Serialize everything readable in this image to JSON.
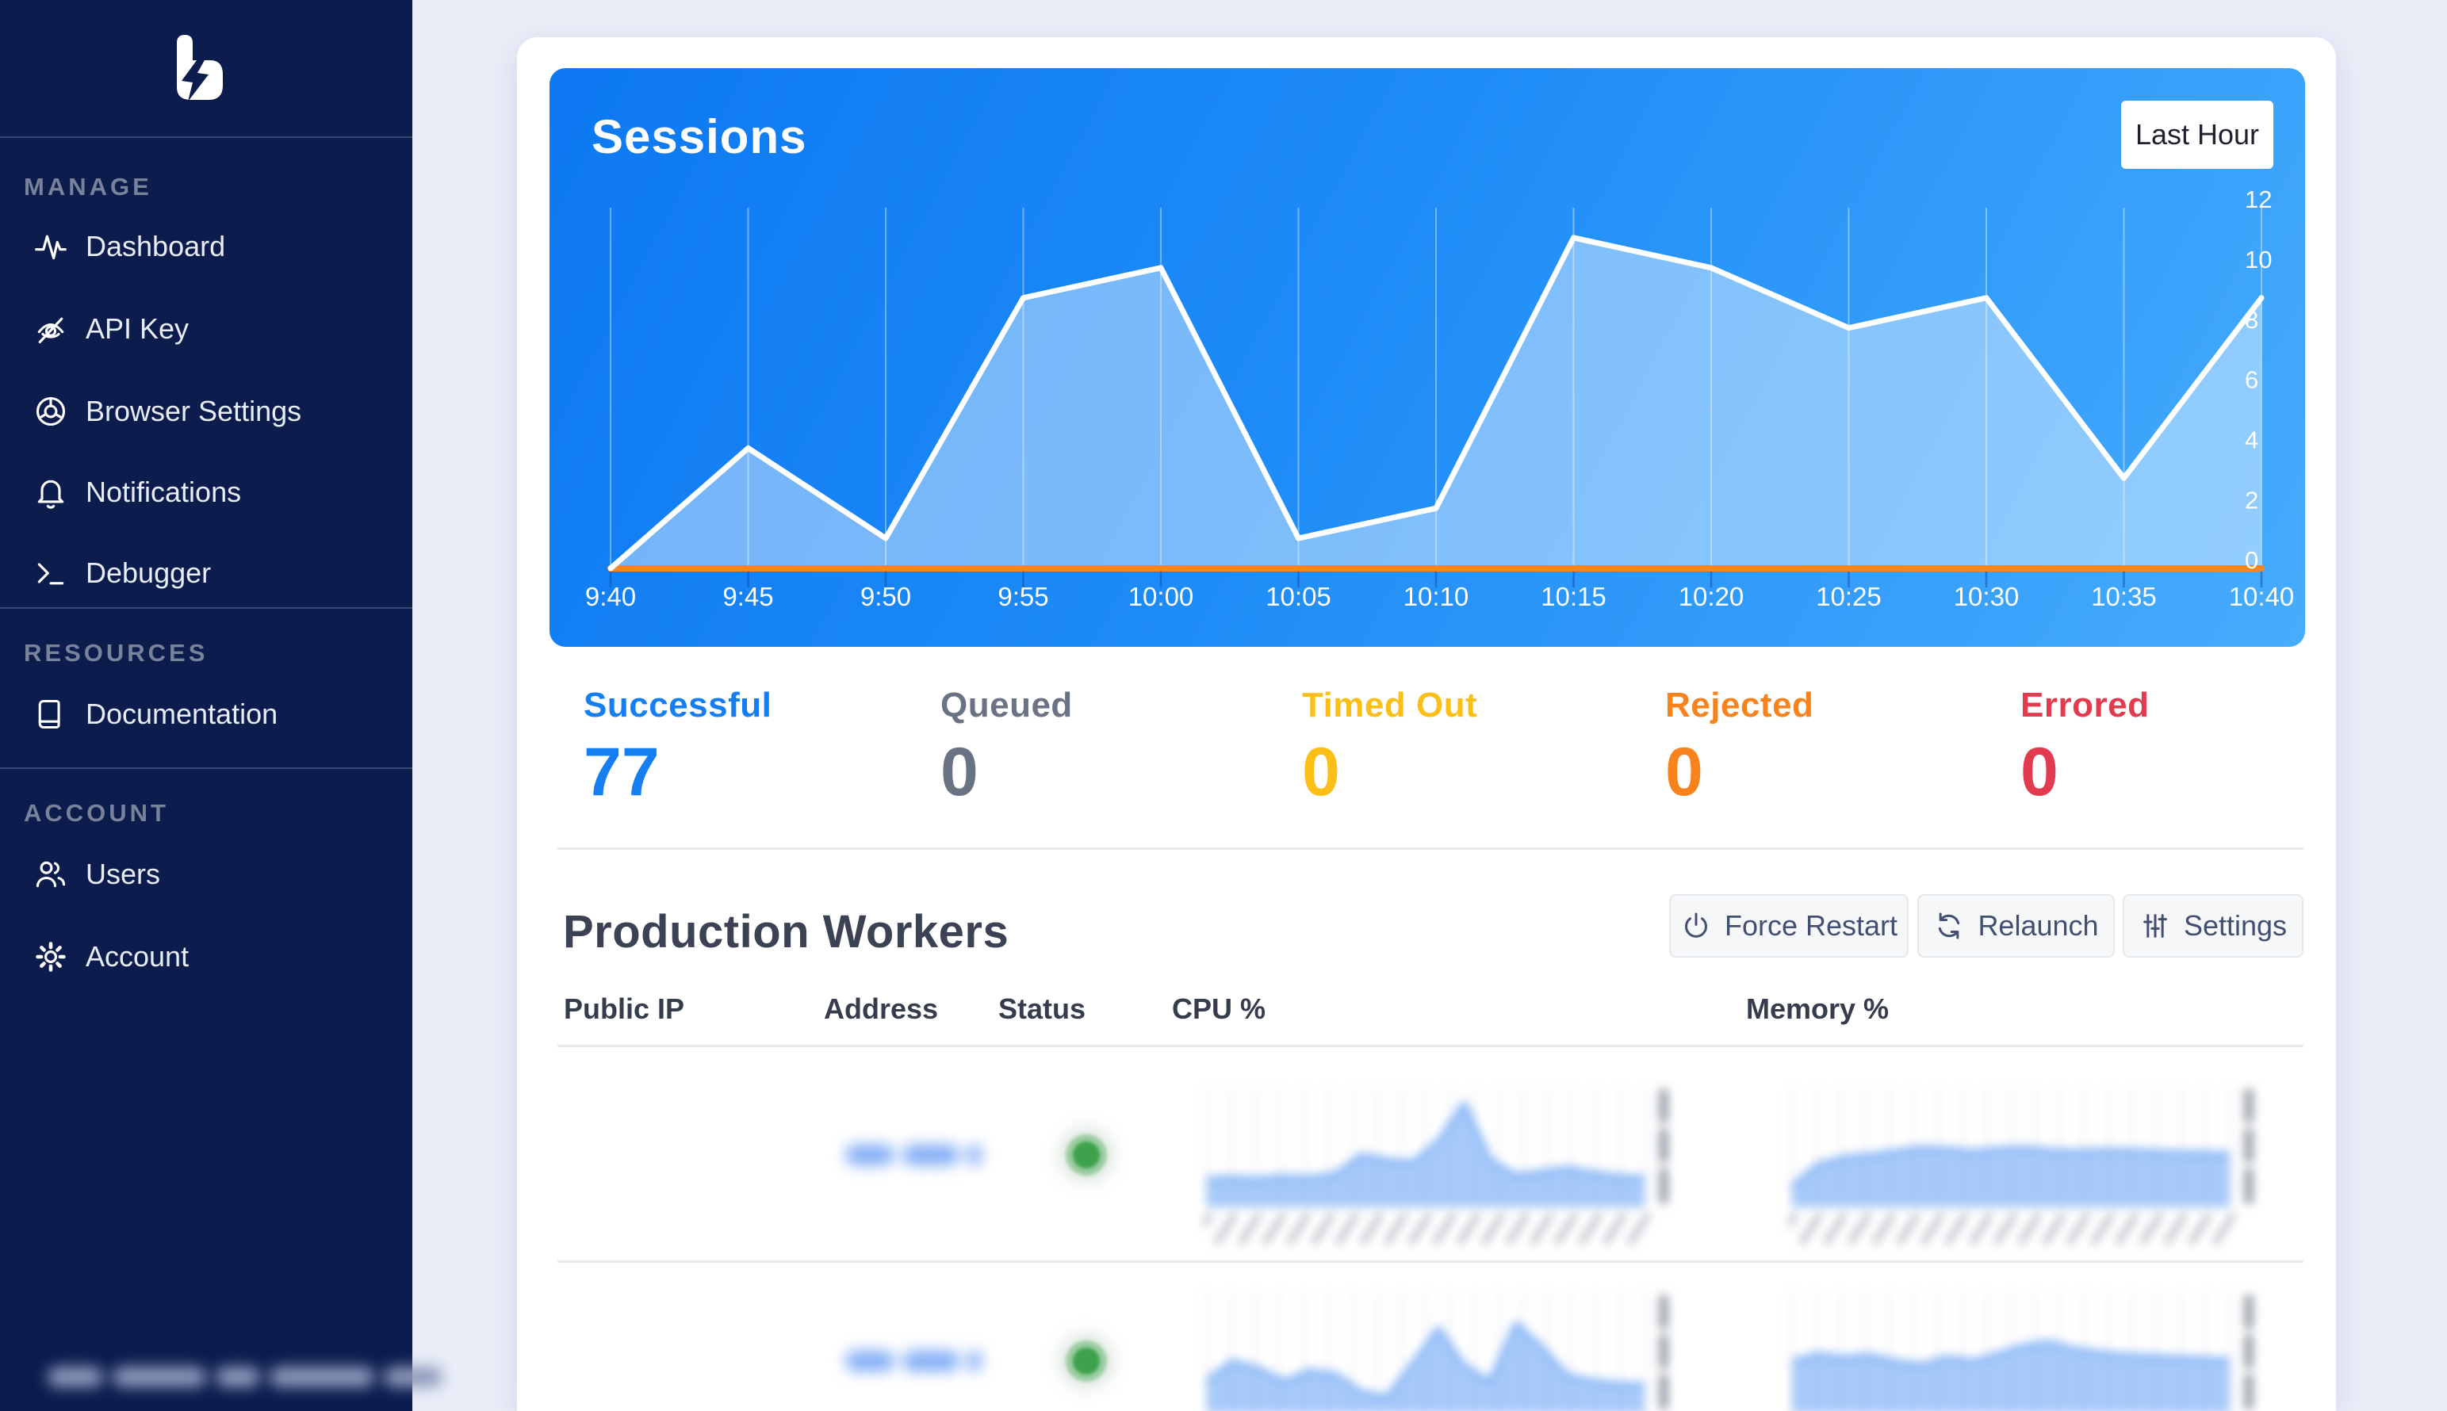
{
  "colors": {
    "sidebar_bg": "#0b1c4d",
    "page_bg": "#e9eef8",
    "chart_gradient_start": "#0d78f2",
    "chart_gradient_end": "#47acfd",
    "chart_line": "#ffffff",
    "chart_baseline": "#f6861f",
    "status_dot": "#3da24b"
  },
  "sidebar": {
    "logo_icon": "bolt-b-logo",
    "sections": [
      {
        "title": "MANAGE",
        "items": [
          {
            "label": "Dashboard",
            "icon": "activity-icon"
          },
          {
            "label": "API Key",
            "icon": "eye-off-icon"
          },
          {
            "label": "Browser Settings",
            "icon": "chrome-icon"
          },
          {
            "label": "Notifications",
            "icon": "bell-icon"
          },
          {
            "label": "Debugger",
            "icon": "terminal-icon"
          }
        ]
      },
      {
        "title": "RESOURCES",
        "items": [
          {
            "label": "Documentation",
            "icon": "book-icon"
          }
        ]
      },
      {
        "title": "ACCOUNT",
        "items": [
          {
            "label": "Users",
            "icon": "users-icon"
          },
          {
            "label": "Account",
            "icon": "gear-icon"
          }
        ]
      }
    ],
    "footer": {
      "logout_icon": "logout-icon",
      "email_redacted": true
    }
  },
  "sessions": {
    "title": "Sessions",
    "range_button": "Last Hour",
    "chart_data": {
      "type": "area",
      "x": [
        "9:40",
        "9:45",
        "9:50",
        "9:55",
        "10:00",
        "10:05",
        "10:10",
        "10:15",
        "10:20",
        "10:25",
        "10:30",
        "10:35",
        "10:40"
      ],
      "series": [
        {
          "name": "sessions",
          "values": [
            0,
            4,
            1,
            9,
            10,
            1,
            2,
            11,
            10,
            8,
            9,
            3,
            9
          ],
          "color": "#ffffff",
          "fill": "rgba(255,255,255,0.42)"
        },
        {
          "name": "baseline",
          "values": [
            0,
            0,
            0,
            0,
            0,
            0,
            0,
            0,
            0,
            0,
            0,
            0,
            0
          ],
          "color": "#f6861f"
        }
      ],
      "ylim": [
        0,
        12
      ],
      "yticks": [
        0,
        2,
        4,
        6,
        8,
        10,
        12
      ],
      "grid": "vertical",
      "legend": false
    }
  },
  "stats": [
    {
      "label": "Successful",
      "value": "77",
      "color": "#157ef3"
    },
    {
      "label": "Queued",
      "value": "0",
      "color": "#6a7383"
    },
    {
      "label": "Timed Out",
      "value": "0",
      "color": "#fcbf17"
    },
    {
      "label": "Rejected",
      "value": "0",
      "color": "#f8821b"
    },
    {
      "label": "Errored",
      "value": "0",
      "color": "#e23b50"
    }
  ],
  "workers": {
    "title": "Production Workers",
    "buttons": [
      {
        "label": "Force Restart",
        "icon": "power-icon"
      },
      {
        "label": "Relaunch",
        "icon": "refresh-icon"
      },
      {
        "label": "Settings",
        "icon": "sliders-icon"
      }
    ],
    "columns": [
      "Public IP",
      "Address",
      "Status",
      "CPU %",
      "Memory %"
    ],
    "rows": [
      {
        "name_redacted": true,
        "status": "online",
        "cpu_spark": [
          24,
          25,
          24,
          26,
          25,
          28,
          44,
          40,
          38,
          56,
          88,
          40,
          27,
          30,
          33,
          29,
          26,
          25
        ],
        "mem_spark": [
          18,
          36,
          42,
          44,
          47,
          50,
          49,
          47,
          49,
          50,
          48,
          47,
          48,
          48,
          47,
          46,
          46,
          45
        ]
      },
      {
        "name_redacted": true,
        "status": "online",
        "cpu_spark": [
          28,
          44,
          38,
          27,
          36,
          33,
          18,
          14,
          42,
          72,
          40,
          27,
          76,
          56,
          32,
          27,
          25,
          24
        ],
        "mem_spark": [
          44,
          50,
          47,
          49,
          44,
          41,
          47,
          44,
          50,
          57,
          60,
          54,
          51,
          49,
          48,
          47,
          46,
          45
        ]
      }
    ]
  }
}
